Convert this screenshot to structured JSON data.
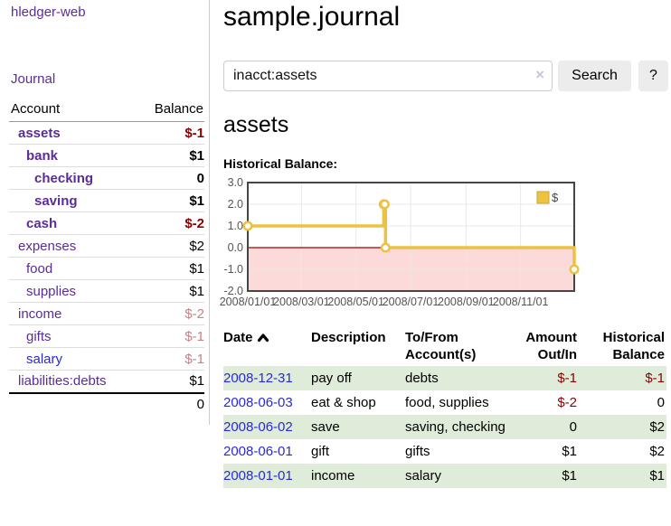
{
  "app": {
    "brand": "hledger-web",
    "nav_journal_label": "Journal"
  },
  "sidebar": {
    "accounts_table": {
      "col_account": "Account",
      "col_balance": "Balance",
      "rows": [
        {
          "name": "assets",
          "name_class": "d1 bold",
          "balance": "$-1",
          "balance_class": "negb"
        },
        {
          "name": "bank",
          "name_class": "d2 bold",
          "balance": "$1",
          "balance_class": "posb"
        },
        {
          "name": "checking",
          "name_class": "d3 bold",
          "balance": "0",
          "balance_class": "posb"
        },
        {
          "name": "saving",
          "name_class": "d3 bold",
          "balance": "$1",
          "balance_class": "posb"
        },
        {
          "name": "cash",
          "name_class": "d2 bold",
          "balance": "$-2",
          "balance_class": "negb"
        },
        {
          "name": "expenses",
          "name_class": "d1",
          "balance": "$2",
          "balance_class": ""
        },
        {
          "name": "food",
          "name_class": "d2",
          "balance": "$1",
          "balance_class": ""
        },
        {
          "name": "supplies",
          "name_class": "d2",
          "balance": "$1",
          "balance_class": ""
        },
        {
          "name": "income",
          "name_class": "d1",
          "balance": "$-2",
          "balance_class": "negm"
        },
        {
          "name": "gifts",
          "name_class": "d2",
          "balance": "$-1",
          "balance_class": "negm"
        },
        {
          "name": "salary",
          "name_class": "d2 blue",
          "balance": "$-1",
          "balance_class": "negm"
        },
        {
          "name": "liabilities:debts",
          "name_class": "d1",
          "balance": "$1",
          "balance_class": ""
        }
      ],
      "total": "0"
    }
  },
  "header": {
    "title": "sample.journal"
  },
  "search": {
    "value": "inacct:assets",
    "clear_icon": "×",
    "button_label": "Search",
    "help_label": "?"
  },
  "account_page": {
    "heading": "assets",
    "chart_label": "Historical Balance:"
  },
  "chart_data": {
    "type": "line",
    "line_style": "step",
    "title": "Historical Balance",
    "legend": {
      "label": "$",
      "position": "top-right"
    },
    "series": [
      {
        "name": "$",
        "color": "#edc240",
        "points": [
          {
            "date": "2008-01-01",
            "day": 0,
            "value": 1
          },
          {
            "date": "2008-06-01",
            "day": 152,
            "value": 2
          },
          {
            "date": "2008-06-02",
            "day": 153,
            "value": 2
          },
          {
            "date": "2008-06-03",
            "day": 154,
            "value": 0
          },
          {
            "date": "2008-12-31",
            "day": 365,
            "value": -1
          }
        ]
      }
    ],
    "ylim": [
      -2,
      3
    ],
    "yticks": [
      {
        "label": "3.0",
        "value": 3
      },
      {
        "label": "2.0",
        "value": 2
      },
      {
        "label": "1.0",
        "value": 1
      },
      {
        "label": "0.0",
        "value": 0
      },
      {
        "label": "-1.0",
        "value": -1
      },
      {
        "label": "-2.0",
        "value": -2
      }
    ],
    "x_total_days": 365,
    "xticks": [
      {
        "label": "2008/01/01",
        "day": 0
      },
      {
        "label": "2008/03/01",
        "day": 60
      },
      {
        "label": "2008/05/01",
        "day": 121
      },
      {
        "label": "2008/07/01",
        "day": 182
      },
      {
        "label": "2008/09/01",
        "day": 244
      },
      {
        "label": "2008/11/01",
        "day": 305
      }
    ],
    "grid": true,
    "negative_region_color": "#fcdada",
    "zero_line_color": "#a00000",
    "grid_color": "#e8e8e8",
    "border_color": "#454545",
    "tick_label_color": "#545454"
  },
  "register_table": {
    "headers": {
      "date": {
        "line1": "Date",
        "line2": ""
      },
      "description": {
        "line1": "Description",
        "line2": ""
      },
      "accounts": {
        "line1": "To/From",
        "line2": "Account(s)"
      },
      "amount": {
        "line1": "Amount",
        "line2": "Out/In"
      },
      "balance": {
        "line1": "Historical",
        "line2": "Balance"
      }
    },
    "sort": {
      "column": "date",
      "direction": "ascending"
    },
    "rows": [
      {
        "date": "2008-12-31",
        "description": "pay off",
        "accounts": "debts",
        "amount": "$-1",
        "amount_class": "neg",
        "balance": "$-1",
        "balance_class": "neg"
      },
      {
        "date": "2008-06-03",
        "description": "eat & shop",
        "accounts": "food, supplies",
        "amount": "$-2",
        "amount_class": "neg",
        "balance": "0",
        "balance_class": ""
      },
      {
        "date": "2008-06-02",
        "description": "save",
        "accounts": "saving, checking",
        "amount": "0",
        "amount_class": "",
        "balance": "$2",
        "balance_class": ""
      },
      {
        "date": "2008-06-01",
        "description": "gift",
        "accounts": "gifts",
        "amount": "$1",
        "amount_class": "",
        "balance": "$2",
        "balance_class": ""
      },
      {
        "date": "2008-01-01",
        "description": "income",
        "accounts": "salary",
        "amount": "$1",
        "amount_class": "",
        "balance": "$1",
        "balance_class": ""
      }
    ]
  },
  "colors": {
    "link_purple": "#5b2c98",
    "link_blue": "#2a2ad4",
    "negative_strong": "#8b0000",
    "negative_muted": "#c28484",
    "stripe_green": "#dfecd9",
    "chart_line_gold": "#edc240",
    "chart_negative_pink": "#fcdada",
    "chart_zero_line": "#a00000",
    "button_gray": "#ececec"
  }
}
